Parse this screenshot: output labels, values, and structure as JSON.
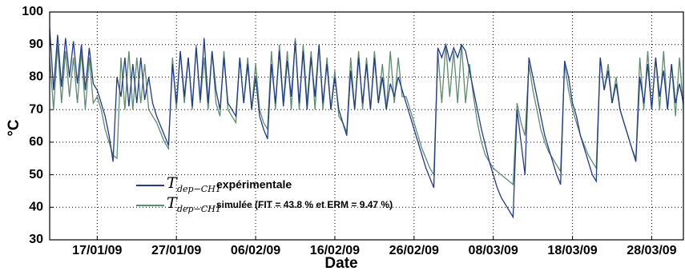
{
  "chart_data": {
    "type": "line",
    "xlabel": "Date",
    "ylabel": "°C",
    "legend_symbol": "T",
    "legend_subscript": "dep−CH1",
    "x": [
      11,
      11.5,
      12,
      12.5,
      13,
      13.5,
      14,
      14.5,
      15,
      15.5,
      16,
      16.5,
      17,
      17.5,
      18,
      18.5,
      19,
      19.5,
      20,
      20.5,
      21,
      21.5,
      22,
      22.5,
      23,
      23.5,
      24,
      24.5,
      25,
      25.5,
      26,
      26.5,
      27,
      27.5,
      28,
      28.5,
      29,
      29.5,
      30,
      30.5,
      31,
      31.5,
      32,
      32.5,
      33,
      33.5,
      34,
      34.5,
      35,
      35.5,
      36,
      36.5,
      37,
      37.5,
      38,
      38.5,
      39,
      39.5,
      40,
      40.5,
      41,
      41.5,
      42,
      42.5,
      43,
      43.5,
      44,
      44.5,
      45,
      45.5,
      46,
      46.5,
      47,
      47.5,
      48,
      48.5,
      49,
      49.5,
      50,
      50.5,
      51,
      51.5,
      52,
      52.5,
      53,
      53.5,
      54,
      54.5,
      55,
      55.5,
      56,
      56.5,
      57,
      57.5,
      58,
      58.5,
      59,
      59.5,
      60,
      60.5,
      61,
      61.5,
      62,
      62.5,
      63,
      63.5,
      64,
      64.5,
      65,
      65.5,
      66,
      66.5,
      67,
      67.5,
      68,
      68.5,
      69,
      69.5,
      70,
      70.5,
      71,
      71.5,
      72,
      72.5,
      73,
      73.5,
      74,
      74.5,
      75,
      75.5,
      76,
      76.5,
      77,
      77.5,
      78,
      78.5,
      79,
      79.5,
      80,
      80.5,
      81,
      81.5,
      82,
      82.5,
      83,
      83.5,
      84,
      84.5,
      85,
      85.5,
      86,
      86.5,
      87,
      87.5,
      88,
      88.5,
      89,
      89.5,
      90,
      90.5,
      91
    ],
    "series": [
      {
        "name": "expérimentale",
        "color": "#1f3a8f",
        "values": [
          95,
          76,
          93,
          77,
          92,
          80,
          91,
          78,
          90,
          76,
          89,
          78,
          76,
          72,
          68,
          62,
          54,
          80,
          74,
          86,
          71,
          84,
          72,
          86,
          73,
          80,
          72,
          68,
          65,
          62,
          59,
          84,
          72,
          88,
          74,
          86,
          71,
          89,
          73,
          92,
          72,
          88,
          76,
          70,
          86,
          72,
          70,
          68,
          86,
          72,
          84,
          70,
          80,
          68,
          64,
          61,
          84,
          72,
          88,
          71,
          85,
          74,
          91,
          72,
          88,
          70,
          86,
          74,
          90,
          72,
          84,
          70,
          80,
          70,
          66,
          62,
          82,
          70,
          86,
          72,
          84,
          70,
          86,
          72,
          80,
          70,
          78,
          74,
          80,
          76,
          72,
          68,
          64,
          60,
          56,
          52,
          49,
          46,
          89,
          86,
          90,
          85,
          89,
          86,
          90,
          88,
          82,
          76,
          70,
          64,
          59,
          54,
          50,
          46,
          43,
          41,
          39,
          37,
          70,
          60,
          50,
          86,
          80,
          74,
          68,
          62,
          58,
          54,
          50,
          47,
          85,
          80,
          72,
          68,
          62,
          58,
          54,
          50,
          48,
          86,
          76,
          82,
          72,
          78,
          70,
          66,
          62,
          58,
          54,
          80,
          72,
          84,
          70,
          86,
          74,
          82,
          70,
          84,
          72,
          78,
          72
        ]
      },
      {
        "name": "simulée (FIT = 43.8 % et ERM = 9.47 %)",
        "color": "#5b8c6b",
        "values": [
          86,
          70,
          90,
          72,
          88,
          74,
          86,
          72,
          88,
          70,
          86,
          72,
          74,
          70,
          64,
          60,
          56,
          55,
          86,
          70,
          88,
          70,
          86,
          72,
          84,
          70,
          68,
          66,
          63,
          60,
          58,
          86,
          70,
          88,
          72,
          86,
          70,
          90,
          72,
          86,
          70,
          88,
          72,
          68,
          88,
          70,
          68,
          66,
          86,
          72,
          86,
          70,
          84,
          70,
          66,
          64,
          88,
          70,
          90,
          72,
          88,
          70,
          92,
          70,
          90,
          72,
          88,
          70,
          90,
          70,
          86,
          70,
          82,
          68,
          66,
          63,
          86,
          70,
          88,
          70,
          86,
          70,
          88,
          72,
          84,
          70,
          88,
          72,
          86,
          74,
          74,
          70,
          66,
          62,
          58,
          55,
          52,
          50,
          88,
          72,
          90,
          74,
          88,
          72,
          90,
          72,
          84,
          74,
          66,
          60,
          56,
          54,
          52,
          51,
          50,
          49,
          48,
          47,
          72,
          66,
          62,
          84,
          76,
          70,
          64,
          60,
          57,
          55,
          53,
          51,
          84,
          76,
          70,
          66,
          62,
          59,
          56,
          54,
          52,
          86,
          76,
          84,
          72,
          80,
          70,
          66,
          62,
          58,
          55,
          86,
          70,
          88,
          70,
          86,
          70,
          88,
          70,
          84,
          68,
          86,
          70
        ]
      }
    ],
    "xlim": [
      11,
      91
    ],
    "xticks": [
      {
        "value": 17,
        "label": "17/01/09"
      },
      {
        "value": 27,
        "label": "27/01/09"
      },
      {
        "value": 37,
        "label": "06/02/09"
      },
      {
        "value": 47,
        "label": "16/02/09"
      },
      {
        "value": 57,
        "label": "26/02/09"
      },
      {
        "value": 67,
        "label": "08/03/09"
      },
      {
        "value": 77,
        "label": "18/03/09"
      },
      {
        "value": 87,
        "label": "28/03/09"
      }
    ],
    "ylim": [
      30,
      100
    ],
    "yticks": [
      30,
      40,
      50,
      60,
      70,
      80,
      90,
      100
    ],
    "grid": true
  }
}
